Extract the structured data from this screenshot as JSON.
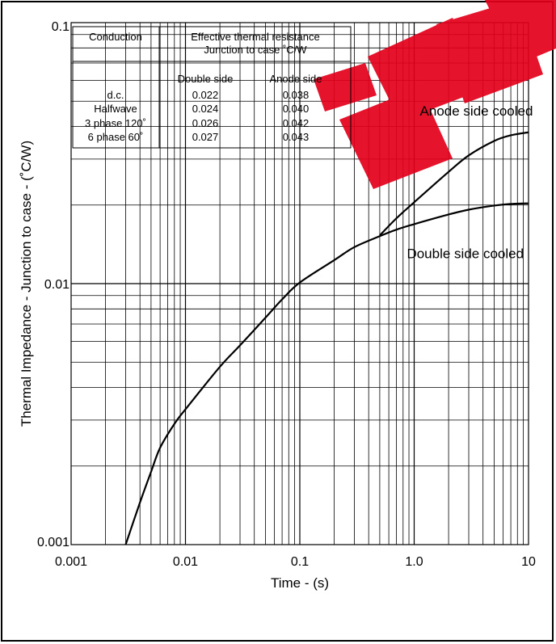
{
  "chart_data": {
    "type": "line",
    "xlabel": "Time - (s)",
    "ylabel": "Thermal Impedance - Junction to case - (˚C/W)",
    "xscale": "log",
    "yscale": "log",
    "xlim": [
      0.001,
      10
    ],
    "ylim": [
      0.001,
      0.1
    ],
    "grid": true,
    "x_tick_labels": [
      {
        "value": 0.001,
        "label": "0.001"
      },
      {
        "value": 0.01,
        "label": "0.01"
      },
      {
        "value": 0.1,
        "label": "0.1"
      },
      {
        "value": 1,
        "label": "1.0"
      },
      {
        "value": 10,
        "label": "10"
      }
    ],
    "y_tick_labels": [
      {
        "value": 0.001,
        "label": "0.001"
      },
      {
        "value": 0.01,
        "label": "0.01"
      },
      {
        "value": 0.1,
        "label": "0.1"
      }
    ],
    "series": [
      {
        "name": "Double side cooled",
        "x": [
          0.003,
          0.004,
          0.005,
          0.006,
          0.008,
          0.01,
          0.02,
          0.03,
          0.05,
          0.07,
          0.1,
          0.2,
          0.3,
          0.5,
          0.7,
          1,
          2,
          3,
          5,
          7,
          10
        ],
        "y": [
          0.001,
          0.00145,
          0.0019,
          0.00235,
          0.0029,
          0.0033,
          0.0048,
          0.0058,
          0.0074,
          0.0087,
          0.0101,
          0.0123,
          0.0138,
          0.0152,
          0.0161,
          0.0169,
          0.0184,
          0.0192,
          0.0199,
          0.0202,
          0.0203
        ]
      },
      {
        "name": "Anode side cooled",
        "x": [
          0.5,
          0.7,
          1,
          2,
          3,
          5,
          7,
          10
        ],
        "y": [
          0.0153,
          0.0178,
          0.0205,
          0.0268,
          0.031,
          0.0352,
          0.037,
          0.038
        ]
      }
    ],
    "annotations": [
      {
        "text": "Anode side cooled",
        "x": 3.5,
        "y": 0.044
      },
      {
        "text": "Double side cooled",
        "x": 2.8,
        "y": 0.0125
      }
    ]
  },
  "table": {
    "header_conduction": "Conduction",
    "header_resistance_line1": "Effective thermal resistance",
    "header_resistance_line2": "Junction to case ˚C/W",
    "col_double": "Double side",
    "col_anode": "Anode side",
    "rows": [
      {
        "conduction": "d.c.",
        "double": "0.022",
        "anode": "0.038"
      },
      {
        "conduction": "Halfwave",
        "double": "0.024",
        "anode": "0.040"
      },
      {
        "conduction": "3 phase 120˚",
        "double": "0.026",
        "anode": "0.042"
      },
      {
        "conduction": "6 phase 60˚",
        "double": "0.027",
        "anode": "0.043"
      }
    ]
  },
  "colors": {
    "watermark": "#e3001b",
    "grid": "#000000",
    "curve": "#000000"
  }
}
